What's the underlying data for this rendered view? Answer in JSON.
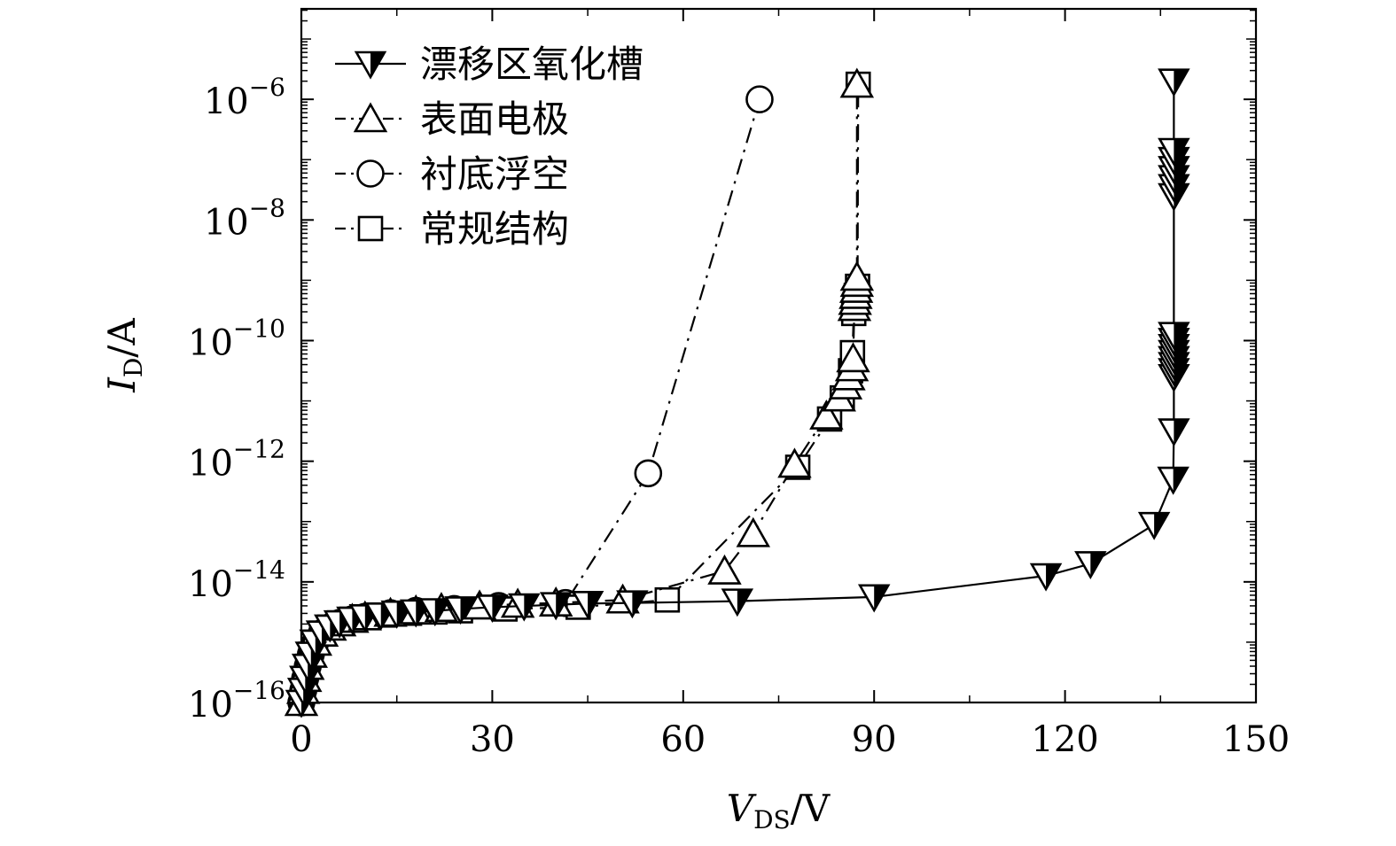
{
  "chart_data": {
    "type": "line",
    "xlabel": {
      "main": "V",
      "sub": "DS",
      "unit": "/V"
    },
    "ylabel": {
      "main": "I",
      "sub": "D",
      "unit": "/A"
    },
    "xlim": [
      0,
      150
    ],
    "ylim_log10": [
      -16,
      -4.5
    ],
    "y_scale": "log",
    "x_ticks": [
      0,
      30,
      60,
      90,
      120,
      150
    ],
    "x_tick_labels": [
      "0",
      "30",
      "60",
      "90",
      "120",
      "150"
    ],
    "y_ticks_log10": [
      -16,
      -14,
      -12,
      -10,
      -8,
      -6
    ],
    "y_tick_labels": [
      {
        "base": "10",
        "exp": "−16"
      },
      {
        "base": "10",
        "exp": "−14"
      },
      {
        "base": "10",
        "exp": "−12"
      },
      {
        "base": "10",
        "exp": "−10"
      },
      {
        "base": "10",
        "exp": "−8"
      },
      {
        "base": "10",
        "exp": "−6"
      }
    ],
    "grid": false,
    "legend_position": "top-left",
    "series": [
      {
        "name": "漂移区氧化槽",
        "marker": "triangle-down-half",
        "line": "solid",
        "points": [
          [
            0,
            -16
          ],
          [
            0.3,
            -15.8
          ],
          [
            0.6,
            -15.6
          ],
          [
            1.0,
            -15.4
          ],
          [
            1.5,
            -15.2
          ],
          [
            2.2,
            -15.0
          ],
          [
            3.2,
            -14.85
          ],
          [
            4.5,
            -14.75
          ],
          [
            6,
            -14.68
          ],
          [
            8,
            -14.62
          ],
          [
            10,
            -14.58
          ],
          [
            12.5,
            -14.55
          ],
          [
            15,
            -14.52
          ],
          [
            18,
            -14.5
          ],
          [
            21,
            -14.48
          ],
          [
            25,
            -14.45
          ],
          [
            30,
            -14.42
          ],
          [
            35,
            -14.4
          ],
          [
            40,
            -14.38
          ],
          [
            45,
            -14.36
          ],
          [
            52,
            -14.35
          ],
          [
            68.5,
            -14.32
          ],
          [
            90,
            -14.25
          ],
          [
            117,
            -13.9
          ],
          [
            124,
            -13.7
          ],
          [
            134,
            -13.05
          ],
          [
            137,
            -12.3
          ],
          [
            137.1,
            -11.5
          ],
          [
            137.1,
            -10.6
          ],
          [
            137.1,
            -10.5
          ],
          [
            137.1,
            -10.4
          ],
          [
            137.1,
            -10.3
          ],
          [
            137.1,
            -10.2
          ],
          [
            137.1,
            -10.1
          ],
          [
            137.1,
            -10.0
          ],
          [
            137.1,
            -9.9
          ],
          [
            137.1,
            -7.6
          ],
          [
            137.1,
            -7.45
          ],
          [
            137.1,
            -7.3
          ],
          [
            137.1,
            -7.15
          ],
          [
            137.1,
            -7.0
          ],
          [
            137.1,
            -6.85
          ],
          [
            137.1,
            -5.7
          ]
        ]
      },
      {
        "name": "表面电极",
        "marker": "triangle-up-open",
        "line": "dashdot",
        "points": [
          [
            0,
            -16
          ],
          [
            0.3,
            -15.8
          ],
          [
            0.6,
            -15.6
          ],
          [
            1.0,
            -15.4
          ],
          [
            1.5,
            -15.2
          ],
          [
            2.2,
            -15.0
          ],
          [
            3.2,
            -14.85
          ],
          [
            4.5,
            -14.75
          ],
          [
            6,
            -14.68
          ],
          [
            8,
            -14.62
          ],
          [
            10,
            -14.58
          ],
          [
            14,
            -14.52
          ],
          [
            18,
            -14.48
          ],
          [
            22,
            -14.44
          ],
          [
            28,
            -14.4
          ],
          [
            34,
            -14.37
          ],
          [
            40,
            -14.35
          ],
          [
            50.5,
            -14.3
          ],
          [
            66.5,
            -13.82
          ],
          [
            71,
            -13.2
          ],
          [
            77.5,
            -12.05
          ],
          [
            82.5,
            -11.25
          ],
          [
            84.5,
            -10.95
          ],
          [
            85.5,
            -10.75
          ],
          [
            86,
            -10.6
          ],
          [
            86.5,
            -10.45
          ],
          [
            86.7,
            -10.3
          ],
          [
            86.9,
            -9.45
          ],
          [
            87,
            -9.35
          ],
          [
            87.1,
            -9.25
          ],
          [
            87.2,
            -9.15
          ],
          [
            87.3,
            -9.05
          ],
          [
            87.3,
            -8.95
          ],
          [
            87.3,
            -5.75
          ]
        ]
      },
      {
        "name": "衬底浮空",
        "marker": "circle-open",
        "line": "dashdot",
        "points": [
          [
            0,
            -16
          ],
          [
            0.3,
            -15.8
          ],
          [
            0.6,
            -15.6
          ],
          [
            1.0,
            -15.4
          ],
          [
            1.5,
            -15.2
          ],
          [
            2.2,
            -15.0
          ],
          [
            3.2,
            -14.85
          ],
          [
            4.5,
            -14.75
          ],
          [
            6,
            -14.68
          ],
          [
            8,
            -14.62
          ],
          [
            10,
            -14.58
          ],
          [
            14,
            -14.52
          ],
          [
            18,
            -14.48
          ],
          [
            24,
            -14.45
          ],
          [
            31,
            -14.4
          ],
          [
            41.5,
            -14.35
          ],
          [
            54.5,
            -12.2
          ],
          [
            72,
            -6.0
          ]
        ]
      },
      {
        "name": "常规结构",
        "marker": "square-open",
        "line": "dashdot",
        "points": [
          [
            0,
            -16
          ],
          [
            0.3,
            -15.8
          ],
          [
            0.6,
            -15.6
          ],
          [
            1.0,
            -15.4
          ],
          [
            1.5,
            -15.2
          ],
          [
            2.2,
            -15.0
          ],
          [
            3.2,
            -14.85
          ],
          [
            4.5,
            -14.75
          ],
          [
            6,
            -14.68
          ],
          [
            8,
            -14.62
          ],
          [
            10,
            -14.58
          ],
          [
            13,
            -14.55
          ],
          [
            17,
            -14.52
          ],
          [
            21,
            -14.5
          ],
          [
            25,
            -14.48
          ],
          [
            32,
            -14.45
          ],
          [
            43.5,
            -14.42
          ],
          [
            57.5,
            -14.3
          ],
          [
            78,
            -12.1
          ],
          [
            83,
            -11.3
          ],
          [
            85,
            -10.95
          ],
          [
            86.3,
            -10.5
          ],
          [
            86.6,
            -10.2
          ],
          [
            86.8,
            -9.55
          ],
          [
            87,
            -9.4
          ],
          [
            87.2,
            -9.25
          ],
          [
            87.4,
            -9.1
          ],
          [
            87.5,
            -5.75
          ]
        ]
      }
    ]
  }
}
